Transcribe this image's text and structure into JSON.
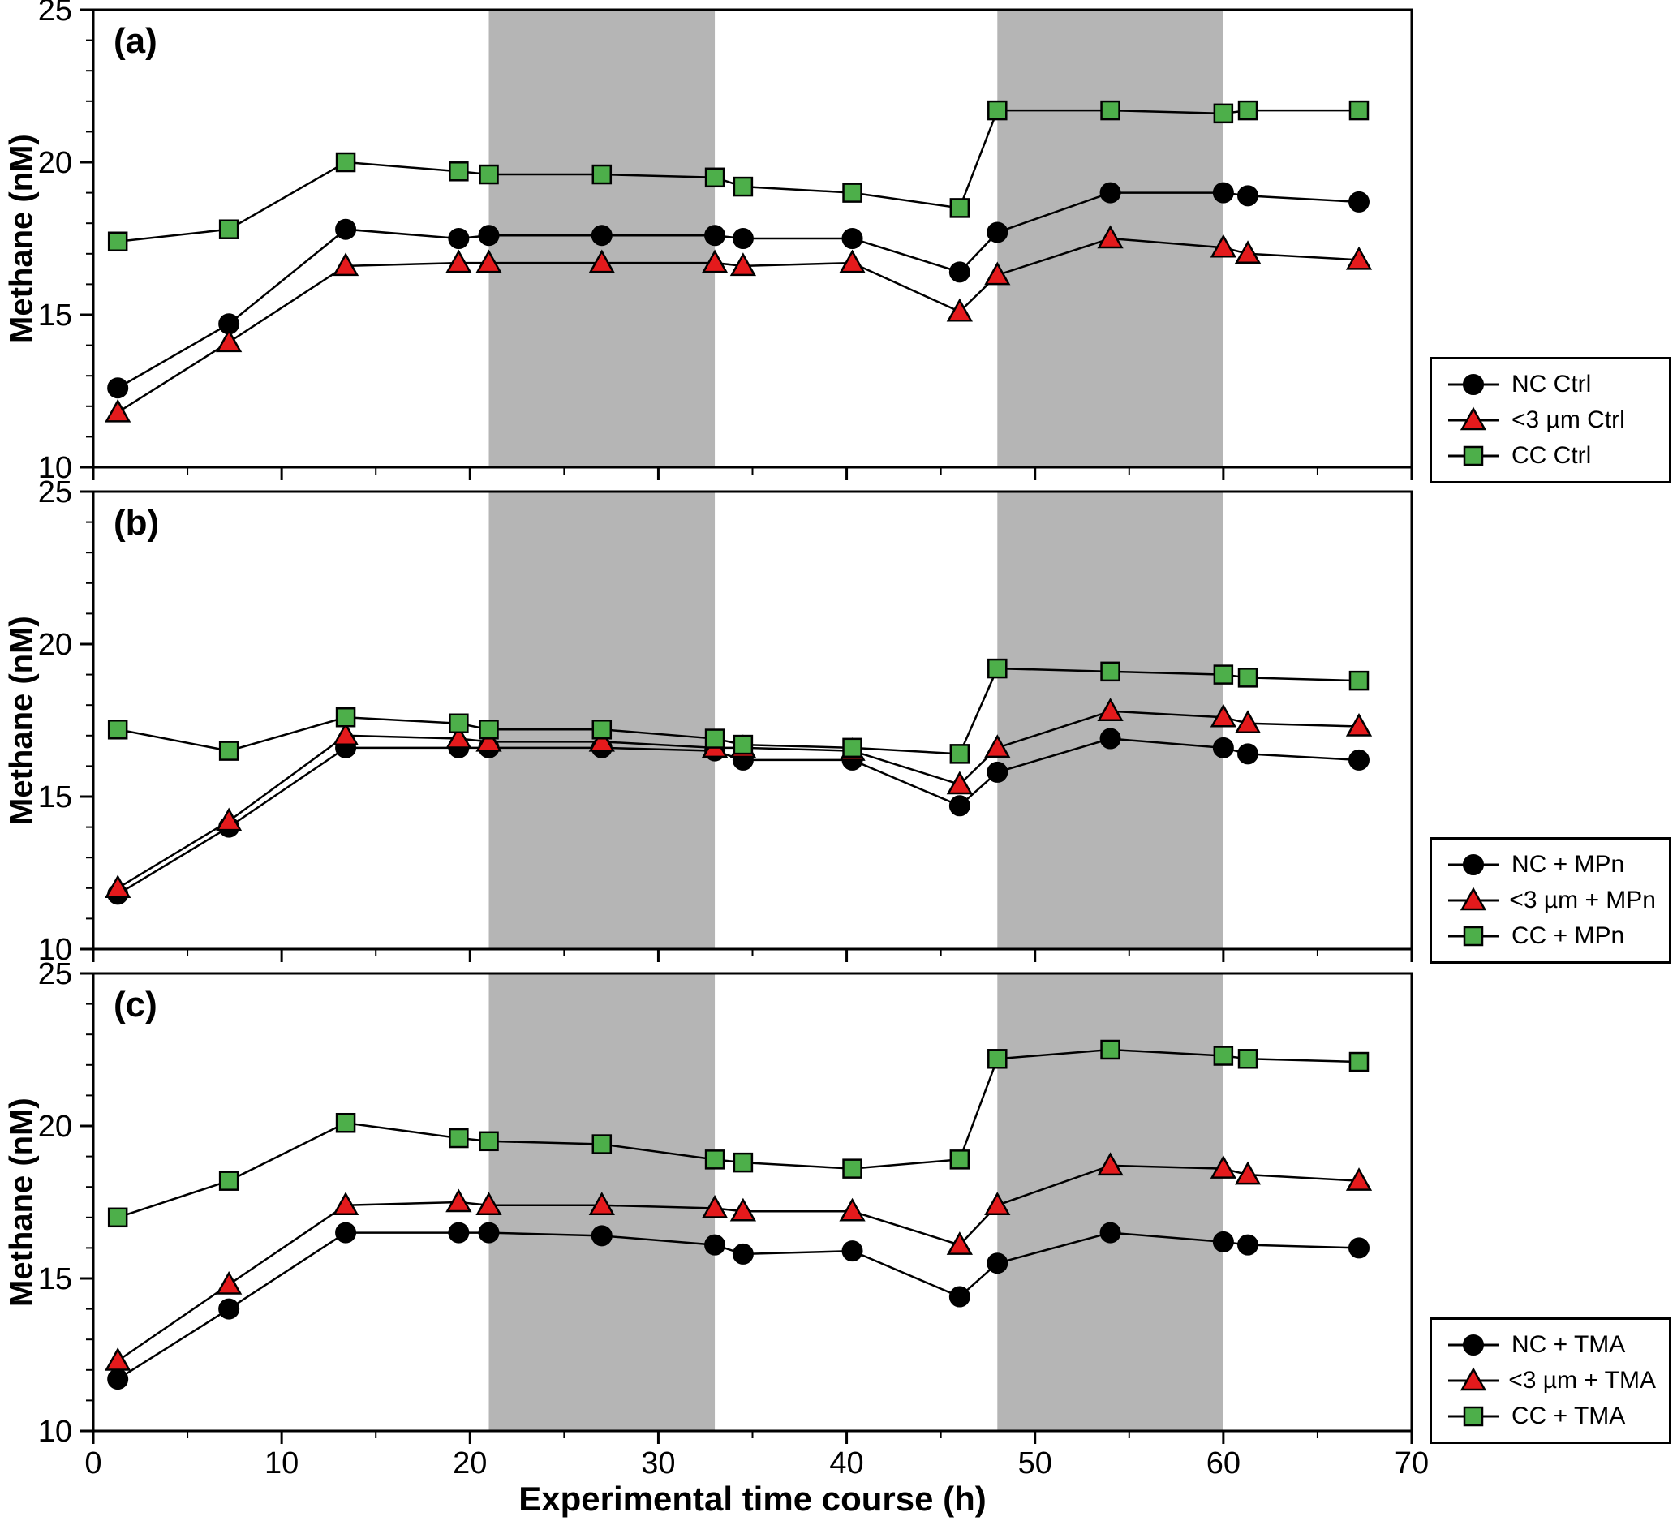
{
  "figure": {
    "xlabel": "Experimental time course (h)",
    "ylabel": "Methane (nM)",
    "xlim": [
      0,
      70
    ],
    "ylim": [
      10,
      25
    ],
    "x_ticks": [
      0,
      10,
      20,
      30,
      40,
      50,
      60,
      70
    ],
    "y_ticks": [
      10,
      15,
      20,
      25
    ],
    "x_minor_step": 5,
    "y_minor_step": 1,
    "shaded_regions": [
      [
        21,
        33
      ],
      [
        48,
        60
      ]
    ],
    "colors": {
      "shade": "#b5b5b5",
      "nc": "#000000",
      "small_fraction": "#e41a1c",
      "cc": "#4daf4a",
      "line": "#000000"
    },
    "grid": false,
    "legend_position": "outside-right-bottom"
  },
  "chart_data": [
    {
      "type": "line",
      "panel_label": "(a)",
      "x": [
        1.3,
        7.2,
        13.4,
        19.4,
        21,
        27,
        33,
        34.5,
        40.3,
        46,
        48,
        54,
        60,
        61.3,
        67.2
      ],
      "series": [
        {
          "name": "NC Ctrl",
          "marker": "circle",
          "color": "#000000",
          "values": [
            12.6,
            14.7,
            17.8,
            17.5,
            17.6,
            17.6,
            17.6,
            17.5,
            17.5,
            16.4,
            17.7,
            19.0,
            19.0,
            18.9,
            18.7
          ]
        },
        {
          "name": "<3 µm Ctrl",
          "marker": "triangle",
          "color": "#e41a1c",
          "values": [
            11.8,
            14.1,
            16.6,
            16.7,
            16.7,
            16.7,
            16.7,
            16.6,
            16.7,
            15.1,
            16.3,
            17.5,
            17.2,
            17.0,
            16.8
          ]
        },
        {
          "name": "CC Ctrl",
          "marker": "square",
          "color": "#4daf4a",
          "values": [
            17.4,
            17.8,
            20.0,
            19.7,
            19.6,
            19.6,
            19.5,
            19.2,
            19.0,
            18.5,
            21.7,
            21.7,
            21.6,
            21.7,
            21.7
          ]
        }
      ]
    },
    {
      "type": "line",
      "panel_label": "(b)",
      "x": [
        1.3,
        7.2,
        13.4,
        19.4,
        21,
        27,
        33,
        34.5,
        40.3,
        46,
        48,
        54,
        60,
        61.3,
        67.2
      ],
      "series": [
        {
          "name": "NC + MPn",
          "marker": "circle",
          "color": "#000000",
          "values": [
            11.8,
            14.0,
            16.6,
            16.6,
            16.6,
            16.6,
            16.5,
            16.2,
            16.2,
            14.7,
            15.8,
            16.9,
            16.6,
            16.4,
            16.2
          ]
        },
        {
          "name": "<3 µm + MPn",
          "marker": "triangle",
          "color": "#e41a1c",
          "values": [
            12.0,
            14.2,
            17.0,
            16.9,
            16.8,
            16.8,
            16.6,
            16.6,
            16.5,
            15.4,
            16.6,
            17.8,
            17.6,
            17.4,
            17.3
          ]
        },
        {
          "name": "CC + MPn",
          "marker": "square",
          "color": "#4daf4a",
          "values": [
            17.2,
            16.5,
            17.6,
            17.4,
            17.2,
            17.2,
            16.9,
            16.7,
            16.6,
            16.4,
            19.2,
            19.1,
            19.0,
            18.9,
            18.8
          ]
        }
      ]
    },
    {
      "type": "line",
      "panel_label": "(c)",
      "x": [
        1.3,
        7.2,
        13.4,
        19.4,
        21,
        27,
        33,
        34.5,
        40.3,
        46,
        48,
        54,
        60,
        61.3,
        67.2
      ],
      "series": [
        {
          "name": "NC + TMA",
          "marker": "circle",
          "color": "#000000",
          "values": [
            11.7,
            14.0,
            16.5,
            16.5,
            16.5,
            16.4,
            16.1,
            15.8,
            15.9,
            14.4,
            15.5,
            16.5,
            16.2,
            16.1,
            16.0
          ]
        },
        {
          "name": "<3 µm + TMA",
          "marker": "triangle",
          "color": "#e41a1c",
          "values": [
            12.3,
            14.8,
            17.4,
            17.5,
            17.4,
            17.4,
            17.3,
            17.2,
            17.2,
            16.1,
            17.4,
            18.7,
            18.6,
            18.4,
            18.2
          ]
        },
        {
          "name": "CC + TMA",
          "marker": "square",
          "color": "#4daf4a",
          "values": [
            17.0,
            18.2,
            20.1,
            19.6,
            19.5,
            19.4,
            18.9,
            18.8,
            18.6,
            18.9,
            22.2,
            22.5,
            22.3,
            22.2,
            22.1
          ]
        }
      ]
    }
  ]
}
